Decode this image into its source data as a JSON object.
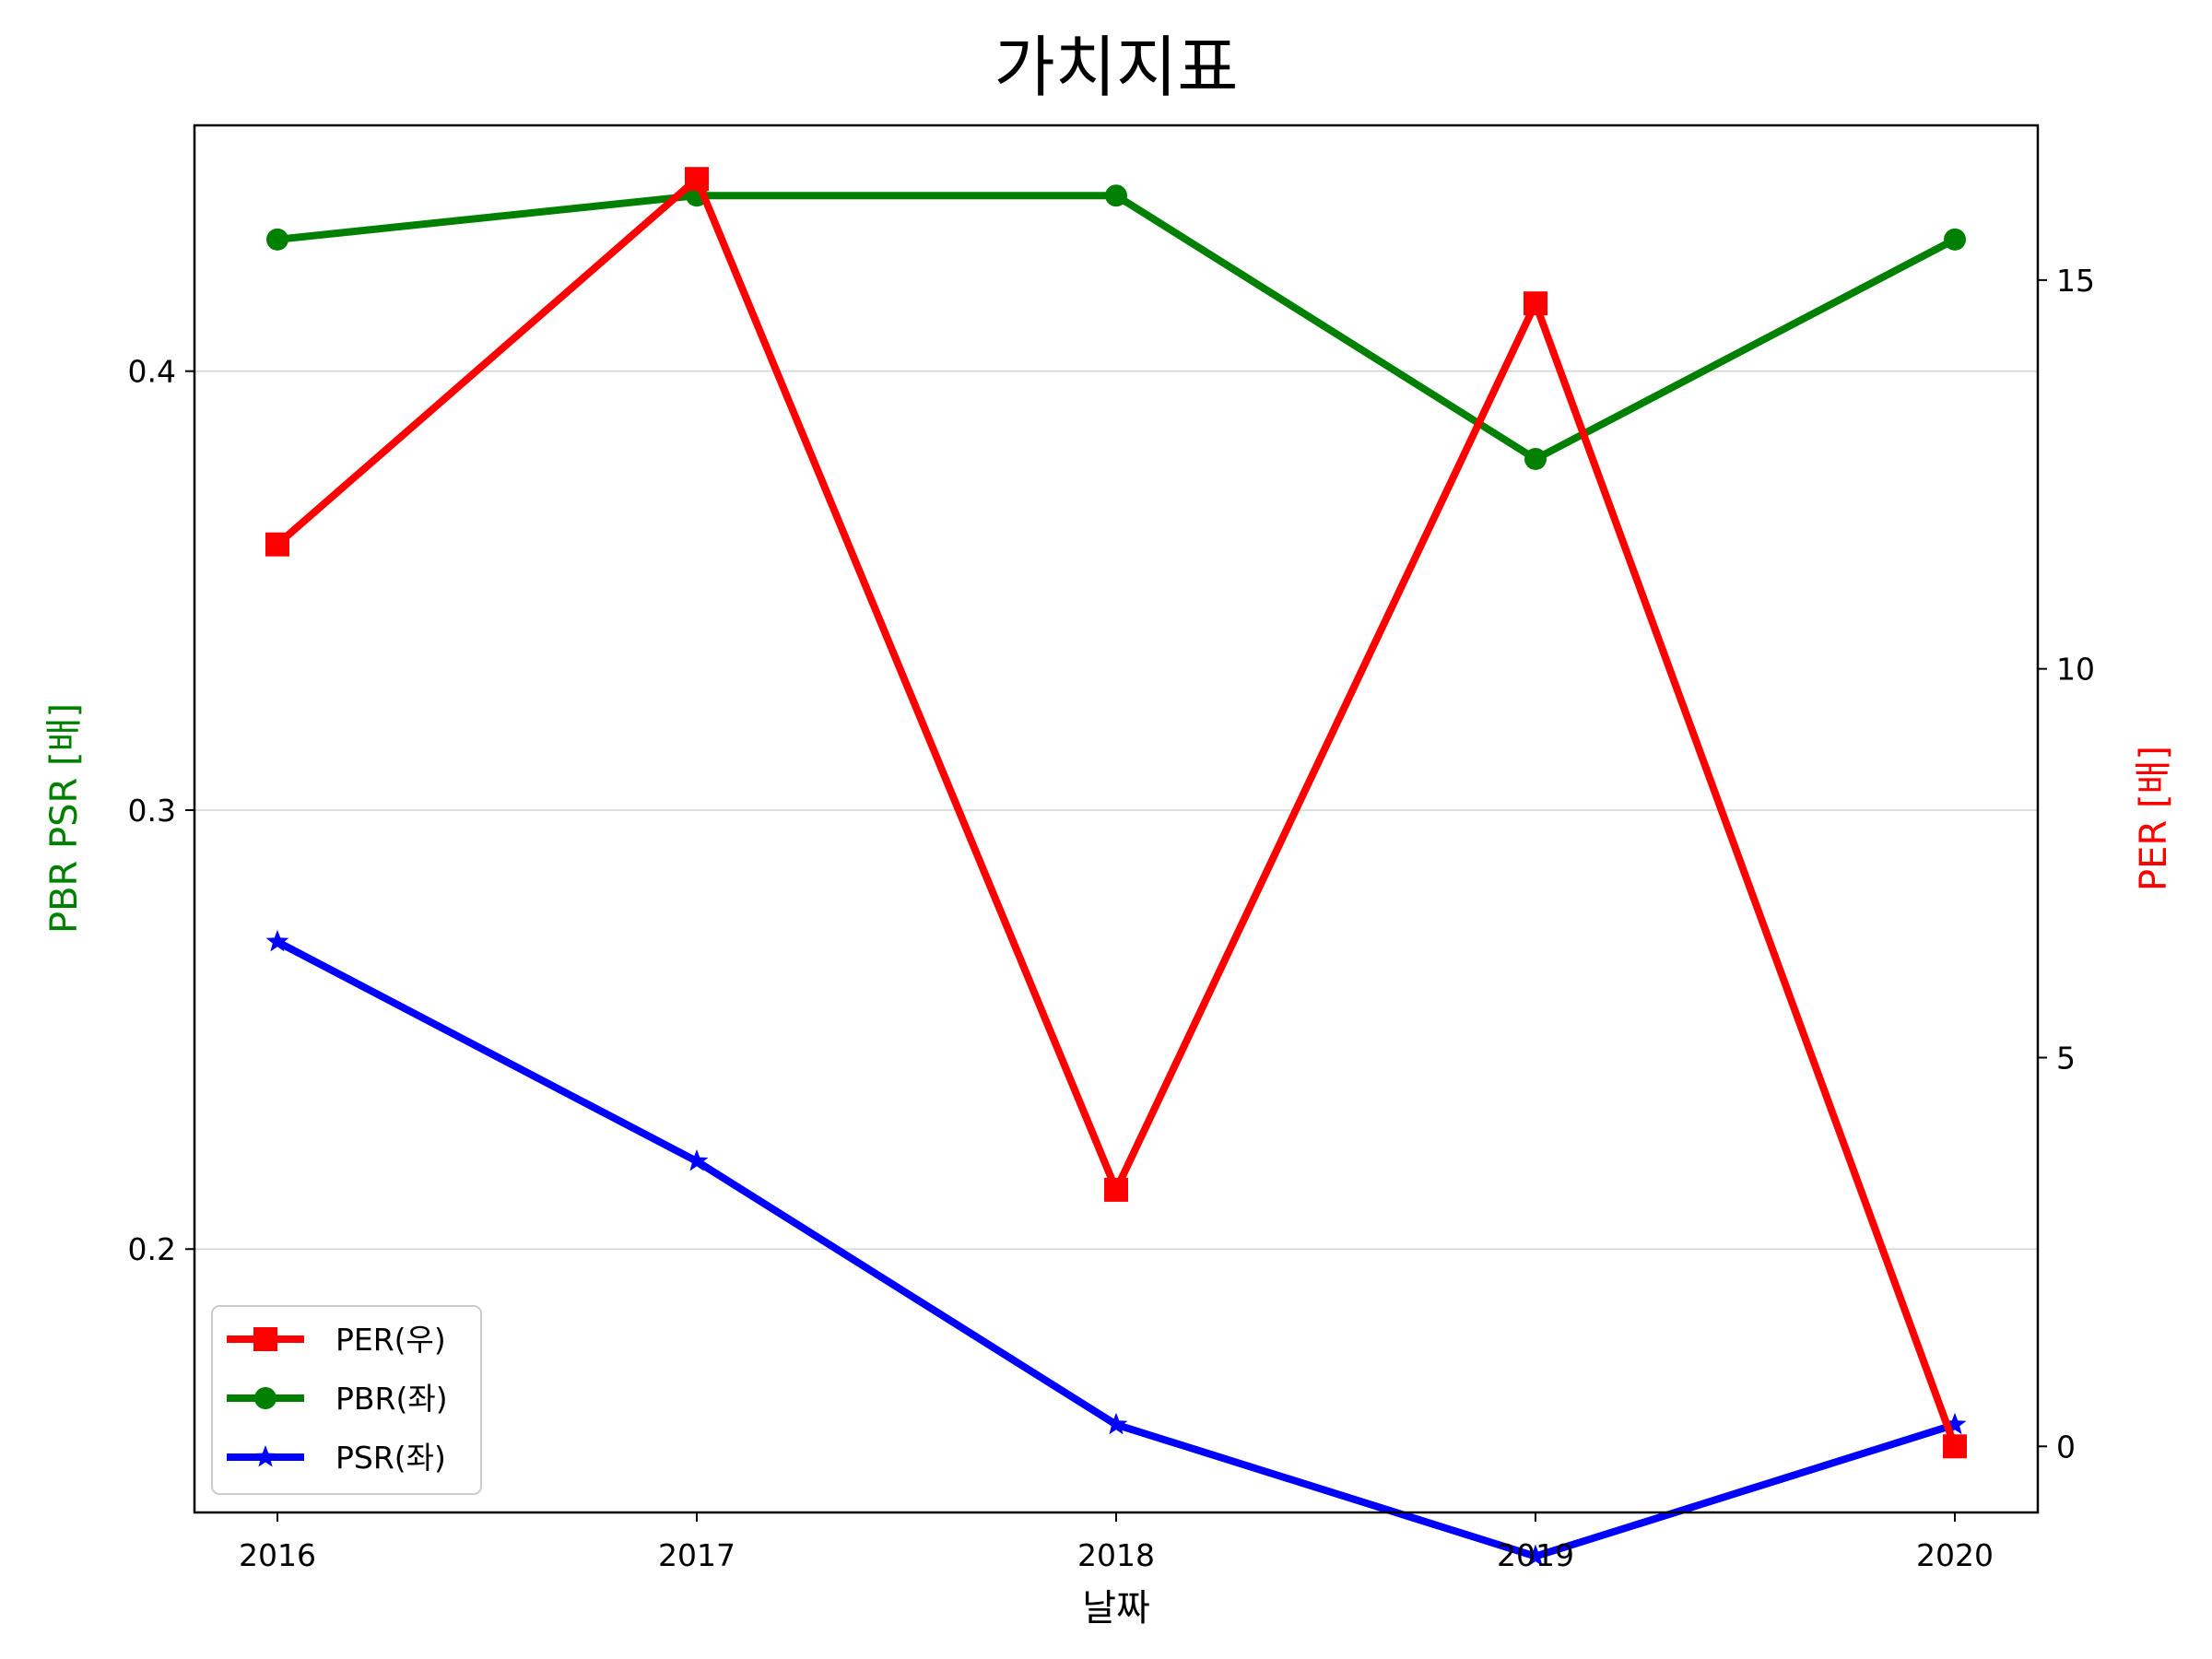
{
  "chart_data": {
    "type": "line",
    "title": "가치지표",
    "xlabel": "날짜",
    "ylabel_left": "PBR PSR [배]",
    "ylabel_right": "PER [배]",
    "x": [
      "2016",
      "2017",
      "2018",
      "2019",
      "2020"
    ],
    "ylim_left": [
      0.14,
      0.456
    ],
    "ylim_right": [
      -0.85,
      16.99
    ],
    "yticks_left": [
      "0.2",
      "0.3",
      "0.4"
    ],
    "yticks_right": [
      "0",
      "5",
      "10",
      "15"
    ],
    "grid": "horizontal (left axis)",
    "legend_position": "lower-left",
    "series": [
      {
        "name": "PER(우)",
        "axis": "right",
        "color": "#ff0000",
        "marker": "square",
        "values": [
          11.6,
          16.3,
          3.3,
          14.7,
          0.0
        ]
      },
      {
        "name": "PBR(좌)",
        "axis": "left",
        "color": "#008000",
        "marker": "circle",
        "values": [
          0.43,
          0.44,
          0.44,
          0.38,
          0.43
        ]
      },
      {
        "name": "PSR(좌)",
        "axis": "left",
        "color": "#0000ff",
        "marker": "star",
        "values": [
          0.27,
          0.22,
          0.16,
          0.13,
          0.16
        ]
      }
    ]
  }
}
